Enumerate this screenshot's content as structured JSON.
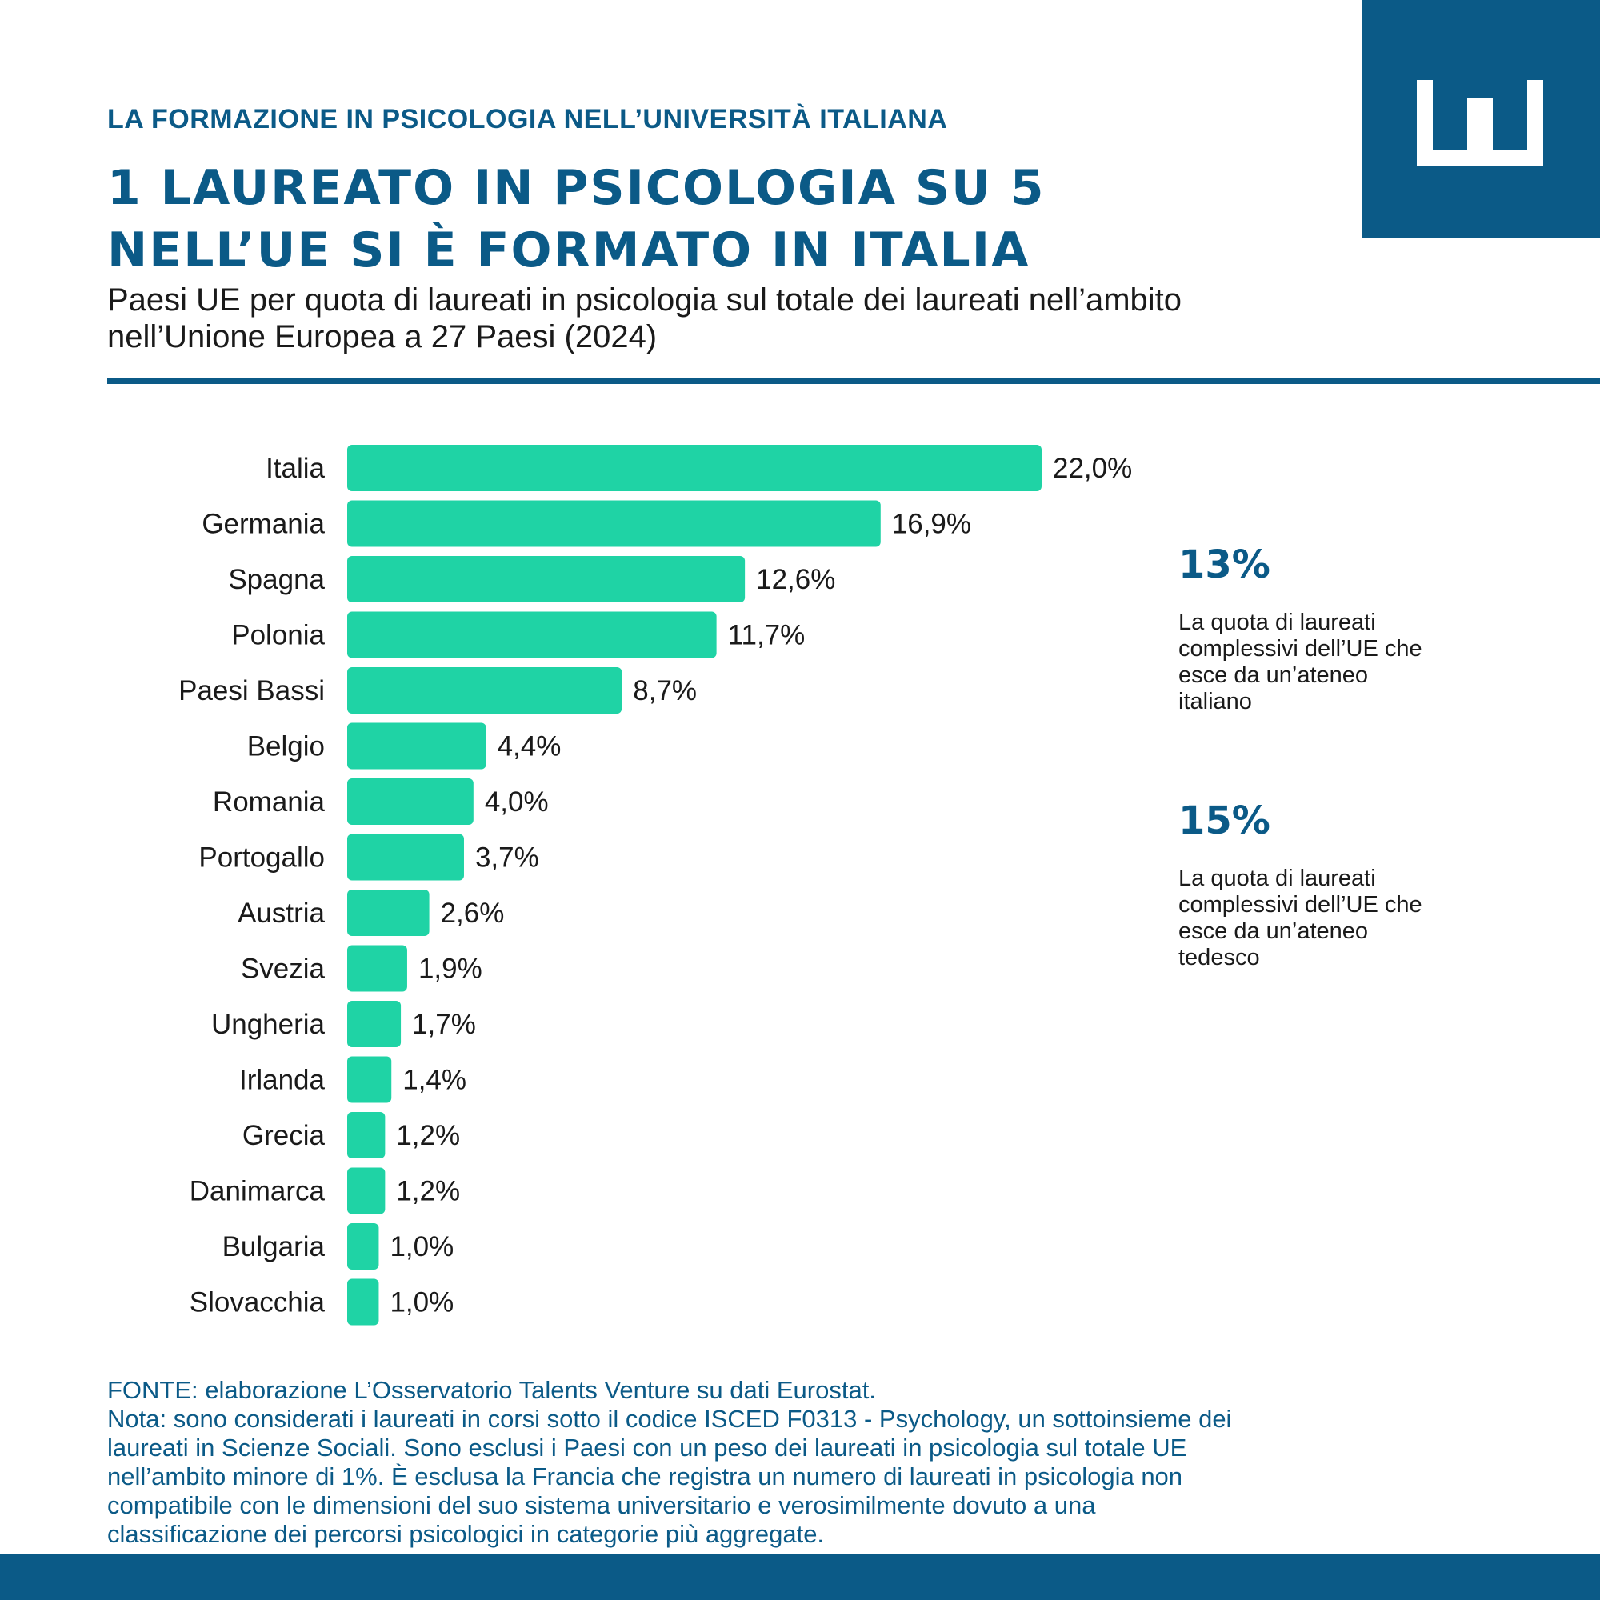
{
  "header": {
    "kicker": "LA FORMAZIONE IN PSICOLOGIA NELL’UNIVERSITÀ ITALIANA",
    "title_line1": "1 LAUREATO IN PSICOLOGIA SU 5",
    "title_line2": "NELL’UE SI È FORMATO IN ITALIA",
    "subtitle_line1": "Paesi UE per quota di laureati in psicologia sul totale dei laureati nell’ambito",
    "subtitle_line2": "nell’Unione Europea a 27 Paesi (2024)"
  },
  "colors": {
    "brand": "#0b5a87",
    "bar": "#1fd3a5"
  },
  "chart_data": {
    "type": "bar",
    "orientation": "horizontal",
    "categories": [
      "Italia",
      "Germania",
      "Spagna",
      "Polonia",
      "Paesi Bassi",
      "Belgio",
      "Romania",
      "Portogallo",
      "Austria",
      "Svezia",
      "Ungheria",
      "Irlanda",
      "Grecia",
      "Danimarca",
      "Bulgaria",
      "Slovacchia"
    ],
    "values": [
      22.0,
      16.9,
      12.6,
      11.7,
      8.7,
      4.4,
      4.0,
      3.7,
      2.6,
      1.9,
      1.7,
      1.4,
      1.2,
      1.2,
      1.0,
      1.0
    ],
    "value_labels": [
      "22,0%",
      "16,9%",
      "12,6%",
      "11,7%",
      "8,7%",
      "4,4%",
      "4,0%",
      "3,7%",
      "2,6%",
      "1,9%",
      "1,7%",
      "1,4%",
      "1,2%",
      "1,2%",
      "1,0%",
      "1,0%"
    ],
    "xlim": [
      0,
      22.0
    ],
    "grid": false,
    "title": "",
    "xlabel": "",
    "ylabel": ""
  },
  "stats": [
    {
      "value": "13%",
      "desc_lines": [
        "La quota di laureati",
        "complessivi dell’UE che",
        "esce da un’ateneo",
        "italiano"
      ]
    },
    {
      "value": "15%",
      "desc_lines": [
        "La quota di laureati",
        "complessivi dell’UE che",
        "esce da un’ateneo",
        "tedesco"
      ]
    }
  ],
  "footer": {
    "lines": [
      "FONTE: elaborazione L’Osservatorio Talents Venture su dati Eurostat.",
      "Nota: sono considerati i laureati in corsi sotto il codice ISCED F0313 - Psychology, un sottoinsieme dei",
      "laureati in Scienze Sociali. Sono esclusi i Paesi con un peso dei laureati in psicologia sul totale UE",
      "nell’ambito minore di 1%. È esclusa la Francia che registra un numero di laureati in psicologia non",
      "compatibile con le dimensioni del suo sistema universitario e verosimilmente dovuto a una",
      "classificazione dei percorsi psicologici in categorie più aggregate."
    ]
  }
}
